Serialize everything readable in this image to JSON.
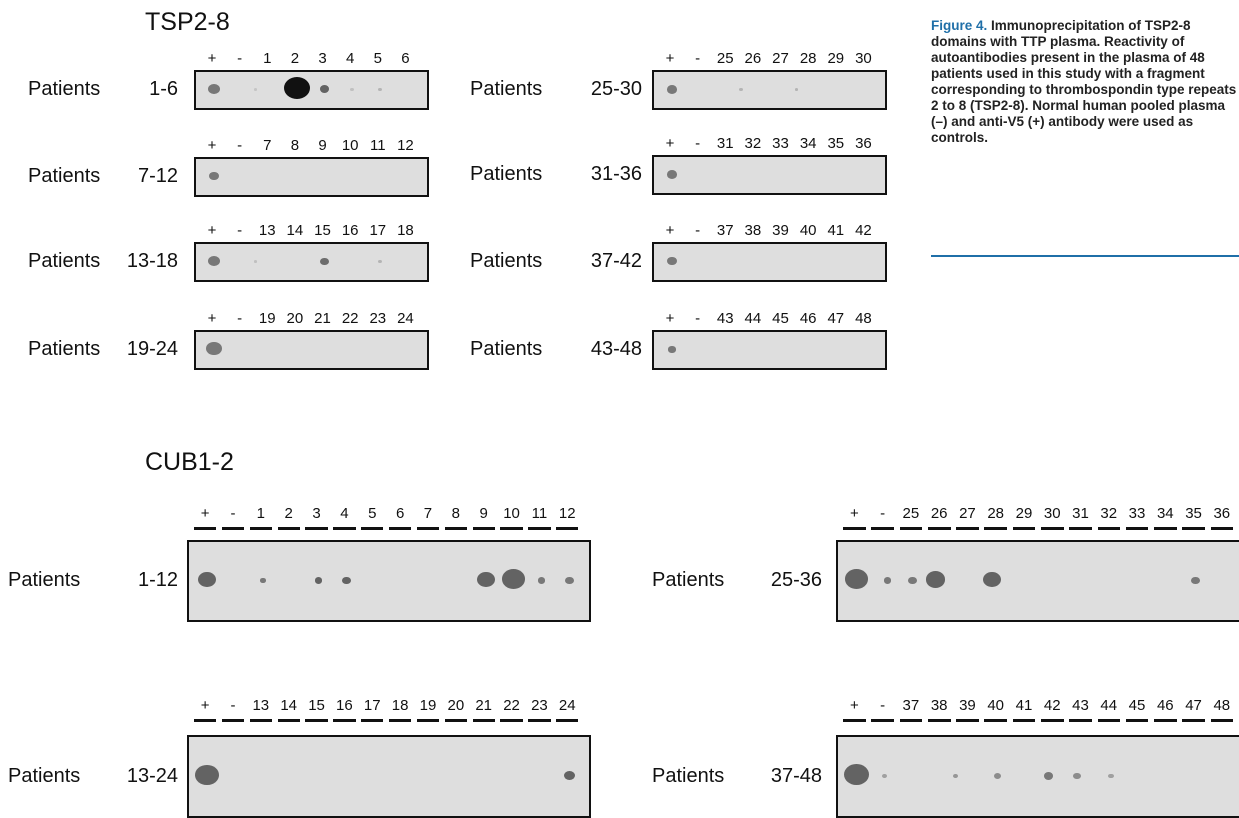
{
  "tsp": {
    "title": "TSP2-8",
    "panels": [
      {
        "label": "Patients",
        "range": "1-6",
        "lanes": [
          "+",
          "-",
          "1",
          "2",
          "3",
          "4",
          "5",
          "6"
        ],
        "spots": [
          [
            0.5,
            1,
            0.5
          ],
          [
            3.5,
            2.2,
            1
          ],
          [
            4.5,
            0.8,
            0.6
          ],
          [
            2,
            0.3,
            0.12
          ],
          [
            5.5,
            0.3,
            0.15
          ],
          [
            6.5,
            0.3,
            0.2
          ]
        ]
      },
      {
        "label": "Patients",
        "range": "7-12",
        "lanes": [
          "+",
          "-",
          "7",
          "8",
          "9",
          "10",
          "11",
          "12"
        ],
        "spots": [
          [
            0.5,
            0.8,
            0.5
          ]
        ]
      },
      {
        "label": "Patients",
        "range": "13-18",
        "lanes": [
          "+",
          "-",
          "13",
          "14",
          "15",
          "16",
          "17",
          "18"
        ],
        "spots": [
          [
            0.5,
            1,
            0.5
          ],
          [
            4.5,
            0.7,
            0.55
          ],
          [
            2,
            0.3,
            0.15
          ],
          [
            6.5,
            0.35,
            0.2
          ]
        ]
      },
      {
        "label": "Patients",
        "range": "19-24",
        "lanes": [
          "+",
          "-",
          "19",
          "20",
          "21",
          "22",
          "23",
          "24"
        ],
        "spots": [
          [
            0.5,
            1.3,
            0.5
          ]
        ]
      },
      {
        "label": "Patients",
        "range": "25-30",
        "lanes": [
          "+",
          "-",
          "25",
          "26",
          "27",
          "28",
          "29",
          "30"
        ],
        "spots": [
          [
            0.5,
            0.9,
            0.5
          ],
          [
            3,
            0.3,
            0.2
          ],
          [
            5,
            0.3,
            0.2
          ]
        ]
      },
      {
        "label": "Patients",
        "range": "31-36",
        "lanes": [
          "+",
          "-",
          "31",
          "32",
          "33",
          "34",
          "35",
          "36"
        ],
        "spots": [
          [
            0.5,
            0.9,
            0.5
          ]
        ]
      },
      {
        "label": "Patients",
        "range": "37-42",
        "lanes": [
          "+",
          "-",
          "37",
          "38",
          "39",
          "40",
          "41",
          "42"
        ],
        "spots": [
          [
            0.5,
            0.8,
            0.5
          ]
        ]
      },
      {
        "label": "Patients",
        "range": "43-48",
        "lanes": [
          "+",
          "-",
          "43",
          "44",
          "45",
          "46",
          "47",
          "48"
        ],
        "spots": [
          [
            0.5,
            0.6,
            0.5
          ]
        ]
      }
    ]
  },
  "cub": {
    "title": "CUB1-2",
    "panels": [
      {
        "label": "Patients",
        "range": "1-12",
        "lanes": [
          "+",
          "-",
          "1",
          "2",
          "3",
          "4",
          "5",
          "6",
          "7",
          "8",
          "9",
          "10",
          "11",
          "12"
        ],
        "spots": [
          [
            0.5,
            1,
            0.6
          ],
          [
            2.5,
            0.3,
            0.5
          ],
          [
            4.5,
            0.4,
            0.6
          ],
          [
            5.5,
            0.5,
            0.6
          ],
          [
            10.5,
            1,
            0.6
          ],
          [
            11.5,
            1.3,
            0.6
          ],
          [
            12.5,
            0.4,
            0.5
          ],
          [
            13.5,
            0.5,
            0.5
          ]
        ]
      },
      {
        "label": "Patients",
        "range": "13-24",
        "lanes": [
          "+",
          "-",
          "13",
          "14",
          "15",
          "16",
          "17",
          "18",
          "19",
          "20",
          "21",
          "22",
          "23",
          "24"
        ],
        "spots": [
          [
            0.5,
            1.3,
            0.6
          ],
          [
            13.5,
            0.6,
            0.6
          ]
        ]
      },
      {
        "label": "Patients",
        "range": "25-36",
        "lanes": [
          "+",
          "-",
          "25",
          "26",
          "27",
          "28",
          "29",
          "30",
          "31",
          "32",
          "33",
          "34",
          "35",
          "36"
        ],
        "spots": [
          [
            0.5,
            1.3,
            0.6
          ],
          [
            1.6,
            0.4,
            0.5
          ],
          [
            2.5,
            0.5,
            0.5
          ],
          [
            3.3,
            1.1,
            0.6
          ],
          [
            5.3,
            1,
            0.6
          ],
          [
            12.5,
            0.5,
            0.5
          ]
        ]
      },
      {
        "label": "Patients",
        "range": "37-48",
        "lanes": [
          "+",
          "-",
          "37",
          "38",
          "39",
          "40",
          "41",
          "42",
          "43",
          "44",
          "45",
          "46",
          "47",
          "48"
        ],
        "spots": [
          [
            0.5,
            1.4,
            0.6
          ],
          [
            1.5,
            0.3,
            0.3
          ],
          [
            4,
            0.3,
            0.35
          ],
          [
            5.5,
            0.4,
            0.4
          ],
          [
            7.3,
            0.5,
            0.5
          ],
          [
            8.3,
            0.4,
            0.4
          ],
          [
            9.5,
            0.3,
            0.3
          ]
        ]
      }
    ]
  },
  "caption": {
    "label": "Figure 4.",
    "text": "Immunoprecipitation of TSP2-8 domains with TTP plasma. Reactivity of autoantibodies present in the plasma of 48 patients used in this study with a fragment corresponding to thrombospondin type repeats 2 to 8 (TSP2-8). Normal human pooled plasma (–) and anti-V5 (+) antibody were used as controls."
  }
}
